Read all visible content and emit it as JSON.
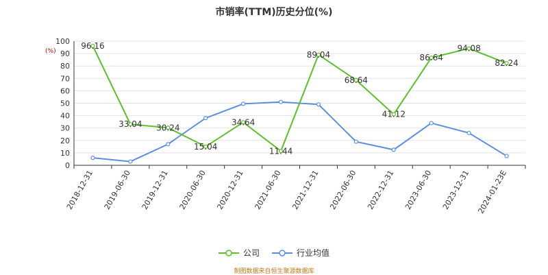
{
  "chart_data": {
    "type": "line",
    "title": "市销率(TTM)历史分位(%)",
    "unit_label": "(%)",
    "categories": [
      "2018-12-31",
      "2019-06-30",
      "2019-12-31",
      "2020-06-30",
      "2020-12-31",
      "2021-06-30",
      "2021-12-31",
      "2022-06-30",
      "2022-12-31",
      "2023-06-30",
      "2023-12-31",
      "2024-01-23E"
    ],
    "ylim": [
      0,
      100
    ],
    "yticks": [
      0,
      10,
      20,
      30,
      40,
      50,
      60,
      70,
      80,
      90,
      100
    ],
    "grid": true,
    "legend_position": "bottom",
    "series": [
      {
        "name": "公司",
        "color": "#5cbf2a",
        "labels": true,
        "values": [
          96.16,
          33.04,
          30.24,
          15.04,
          34.64,
          11.44,
          89.04,
          68.64,
          41.12,
          86.64,
          94.08,
          82.24
        ]
      },
      {
        "name": "行业均值",
        "color": "#5b8ee0",
        "labels": false,
        "values": [
          6,
          3,
          17,
          38,
          49.5,
          51,
          49,
          19,
          12.5,
          34,
          26,
          7.5
        ]
      }
    ]
  },
  "source_note": "制图数据来自恒生聚源数据库"
}
